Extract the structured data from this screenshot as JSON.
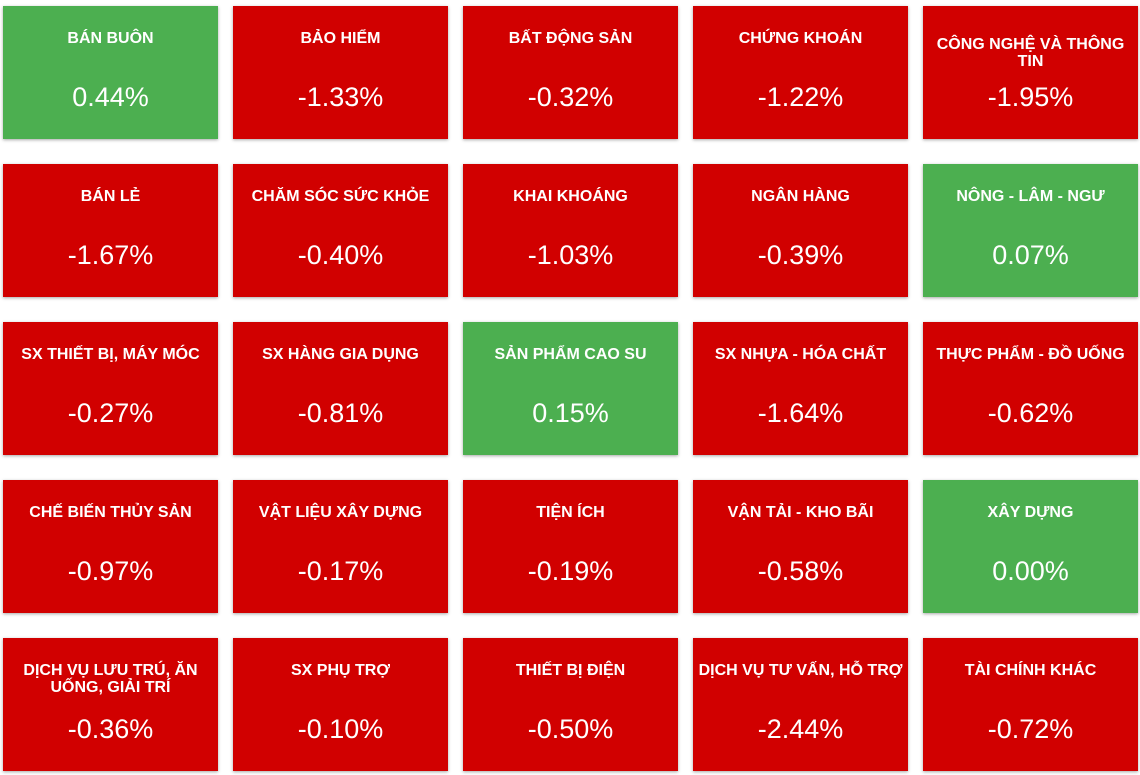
{
  "sectors": [
    {
      "name": "BÁN BUÔN",
      "change": "0.44%",
      "trend": "up"
    },
    {
      "name": "BẢO HIỂM",
      "change": "-1.33%",
      "trend": "down"
    },
    {
      "name": "BẤT ĐỘNG SẢN",
      "change": "-0.32%",
      "trend": "down"
    },
    {
      "name": "CHỨNG KHOÁN",
      "change": "-1.22%",
      "trend": "down"
    },
    {
      "name": "CÔNG NGHỆ VÀ THÔNG TIN",
      "change": "-1.95%",
      "trend": "down"
    },
    {
      "name": "BÁN LẺ",
      "change": "-1.67%",
      "trend": "down"
    },
    {
      "name": "CHĂM SÓC SỨC KHỎE",
      "change": "-0.40%",
      "trend": "down"
    },
    {
      "name": "KHAI KHOÁNG",
      "change": "-1.03%",
      "trend": "down"
    },
    {
      "name": "NGÂN HÀNG",
      "change": "-0.39%",
      "trend": "down"
    },
    {
      "name": "NÔNG - LÂM - NGƯ",
      "change": "0.07%",
      "trend": "up"
    },
    {
      "name": "SX THIẾT BỊ, MÁY MÓC",
      "change": "-0.27%",
      "trend": "down"
    },
    {
      "name": "SX HÀNG GIA DỤNG",
      "change": "-0.81%",
      "trend": "down"
    },
    {
      "name": "SẢN PHẨM CAO SU",
      "change": "0.15%",
      "trend": "up"
    },
    {
      "name": "SX NHỰA - HÓA CHẤT",
      "change": "-1.64%",
      "trend": "down"
    },
    {
      "name": "THỰC PHẨM - ĐỒ UỐNG",
      "change": "-0.62%",
      "trend": "down"
    },
    {
      "name": "CHẾ BIẾN THỦY SẢN",
      "change": "-0.97%",
      "trend": "down"
    },
    {
      "name": "VẬT LIỆU XÂY DỰNG",
      "change": "-0.17%",
      "trend": "down"
    },
    {
      "name": "TIỆN ÍCH",
      "change": "-0.19%",
      "trend": "down"
    },
    {
      "name": "VẬN TẢI - KHO BÃI",
      "change": "-0.58%",
      "trend": "down"
    },
    {
      "name": "XÂY DỰNG",
      "change": "0.00%",
      "trend": "up"
    },
    {
      "name": "DỊCH VỤ LƯU TRÚ, ĂN UỐNG, GIẢI TRÍ",
      "change": "-0.36%",
      "trend": "down"
    },
    {
      "name": "SX PHỤ TRỢ",
      "change": "-0.10%",
      "trend": "down"
    },
    {
      "name": "THIẾT BỊ ĐIỆN",
      "change": "-0.50%",
      "trend": "down"
    },
    {
      "name": "DỊCH VỤ TƯ VẤN, HỖ TRỢ",
      "change": "-2.44%",
      "trend": "down"
    },
    {
      "name": "TÀI CHÍNH KHÁC",
      "change": "-0.72%",
      "trend": "down"
    }
  ],
  "colors": {
    "up": "#4caf50",
    "down": "#d10000",
    "text": "#ffffff"
  }
}
